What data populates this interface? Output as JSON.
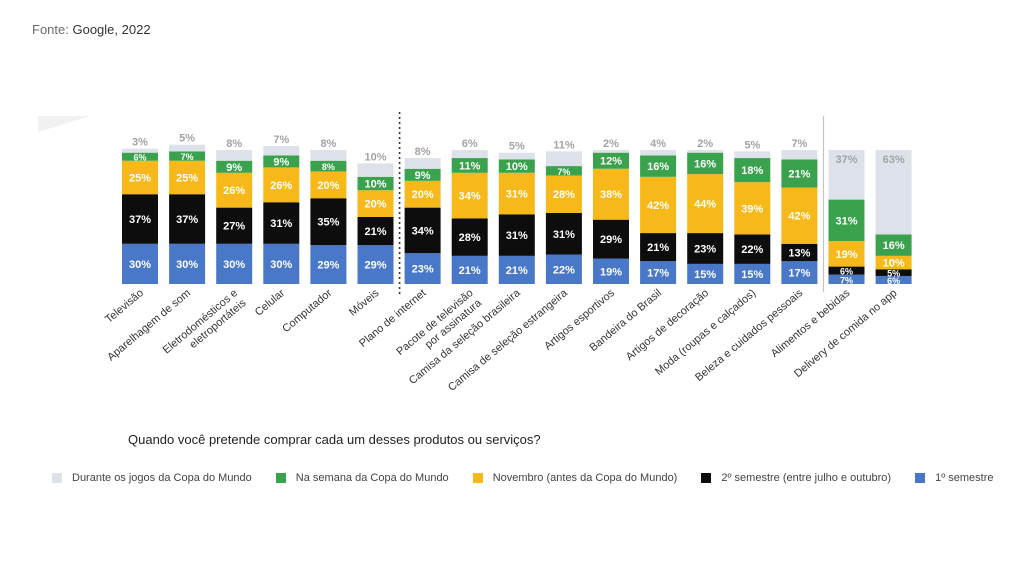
{
  "source": {
    "label": "Fonte:",
    "value": "Google, 2022"
  },
  "chart_data": {
    "type": "bar",
    "stacked": true,
    "normalized": true,
    "title": "Quando você pretende comprar cada um desses produtos ou serviços?",
    "categories": [
      "Televisão",
      "Aparelhagem de som",
      "Eletrodomésticos e eletroportáteis",
      "Celular",
      "Computador",
      "Móveis",
      "Plano de internet",
      "Pacote de televisão por assinatura",
      "Camisa da seleção brasileira",
      "Camisa de seleção estrangeira",
      "Artigos esportivos",
      "Bandeira do Brasil",
      "Artigos de decoração",
      "Moda (roupas e calçados)",
      "Beleza e cuidados pessoais",
      "Alimentos e bebidas",
      "Delivery de comida no app"
    ],
    "category_label_lines": [
      [
        "Televisão"
      ],
      [
        "Aparelhagem de som"
      ],
      [
        "Eletrodomésticos e",
        "eletroportáteis"
      ],
      [
        "Celular"
      ],
      [
        "Computador"
      ],
      [
        "Móveis"
      ],
      [
        "Plano de internet"
      ],
      [
        "Pacote de televisão",
        "por assinatura"
      ],
      [
        "Camisa da seleção brasileira"
      ],
      [
        "Camisa de seleção estrangeira"
      ],
      [
        "Artigos esportivos"
      ],
      [
        "Bandeira do Brasil"
      ],
      [
        "Artigos de decoração"
      ],
      [
        "Moda (roupas e calçados)"
      ],
      [
        "Beleza e cuidados pessoais"
      ],
      [
        "Alimentos e bebidas"
      ],
      [
        "Delivery de comida no app"
      ]
    ],
    "series": [
      {
        "name": "1º semestre",
        "color": "#4a78c8",
        "label_color": "#ffffff",
        "values": [
          30,
          30,
          30,
          30,
          29,
          29,
          23,
          21,
          21,
          22,
          19,
          17,
          15,
          15,
          17,
          7,
          6
        ]
      },
      {
        "name": "2º semestre (entre julho e outubro)",
        "color": "#0d0d0d",
        "label_color": "#ffffff",
        "values": [
          37,
          37,
          27,
          31,
          35,
          21,
          34,
          28,
          31,
          31,
          29,
          21,
          23,
          22,
          13,
          6,
          5
        ]
      },
      {
        "name": "Novembro (antes da Copa do Mundo)",
        "color": "#f6b919",
        "label_color": "#ffffff",
        "values": [
          25,
          25,
          26,
          26,
          20,
          20,
          20,
          34,
          31,
          28,
          38,
          42,
          44,
          39,
          42,
          19,
          10
        ]
      },
      {
        "name": "Na semana da Copa do Mundo",
        "color": "#3aa14c",
        "label_color": "#ffffff",
        "values": [
          6,
          7,
          9,
          9,
          8,
          10,
          9,
          11,
          10,
          7,
          12,
          16,
          16,
          18,
          21,
          31,
          16
        ]
      },
      {
        "name": "Durante os jogos da Copa do Mundo",
        "color": "#dde1ea",
        "label_color": "#9a9a9a",
        "values": [
          3,
          5,
          8,
          7,
          8,
          10,
          8,
          6,
          5,
          11,
          2,
          4,
          2,
          5,
          7,
          37,
          63
        ]
      }
    ],
    "legend_order": [
      4,
      3,
      2,
      1,
      0
    ],
    "group_dividers": [
      "dotted after Móveis",
      "solid after Beleza e cuidados pessoais"
    ],
    "legend_position": "bottom",
    "ylim": [
      0,
      100
    ]
  }
}
